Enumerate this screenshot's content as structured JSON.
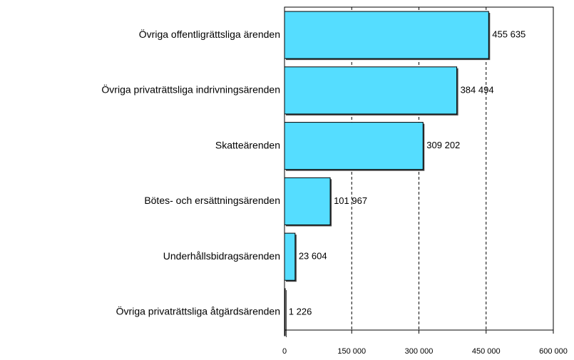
{
  "chart_data": {
    "type": "bar",
    "orientation": "horizontal",
    "categories": [
      "Övriga offentligrättsliga ärenden",
      "Övriga privaträttsliga indrivningsärenden",
      "Skatteärenden",
      "Bötes- och ersättningsärenden",
      "Underhållsbidragsärenden",
      "Övriga privaträttsliga åtgärdsärenden"
    ],
    "values": [
      455635,
      384494,
      309202,
      101967,
      23604,
      1226
    ],
    "value_labels": [
      "455 635",
      "384 494",
      "309 202",
      "101 967",
      "23 604",
      "1 226"
    ],
    "color": "#55ddff",
    "xlim": [
      0,
      600000
    ],
    "xticks": [
      0,
      {
        "value": 150000,
        "label": "150 000"
      },
      {
        "value": 300000,
        "label": "300 000"
      },
      {
        "value": 450000,
        "label": "450 000"
      },
      {
        "value": 600000,
        "label": "600 000"
      }
    ],
    "grid": true
  }
}
